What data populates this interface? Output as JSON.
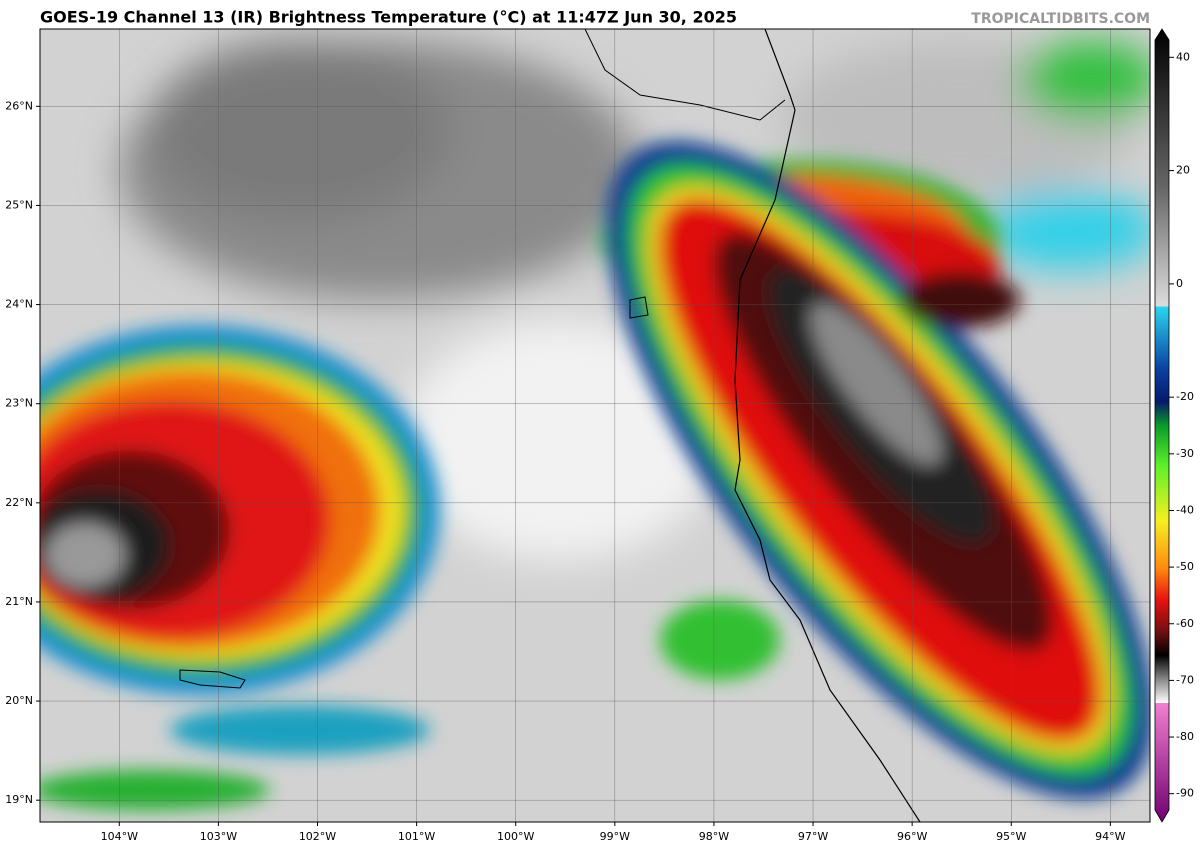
{
  "header": {
    "title": "GOES-19 Channel 13 (IR) Brightness Temperature (°C) at 11:47Z Jun 30, 2025",
    "credit": "TROPICALTIDBITS.COM"
  },
  "map": {
    "lon_range": [
      -104.8,
      -93.6
    ],
    "lat_range": [
      18.78,
      26.78
    ],
    "lat_ticks": [
      {
        "value": 26,
        "label": "26°N"
      },
      {
        "value": 25,
        "label": "25°N"
      },
      {
        "value": 24,
        "label": "24°N"
      },
      {
        "value": 23,
        "label": "23°N"
      },
      {
        "value": 22,
        "label": "22°N"
      },
      {
        "value": 21,
        "label": "21°N"
      },
      {
        "value": 20,
        "label": "20°N"
      },
      {
        "value": 19,
        "label": "19°N"
      }
    ],
    "lon_ticks": [
      {
        "value": -104,
        "label": "104°W"
      },
      {
        "value": -103,
        "label": "103°W"
      },
      {
        "value": -102,
        "label": "102°W"
      },
      {
        "value": -101,
        "label": "101°W"
      },
      {
        "value": -100,
        "label": "100°W"
      },
      {
        "value": -99,
        "label": "99°W"
      },
      {
        "value": -98,
        "label": "98°W"
      },
      {
        "value": -97,
        "label": "97°W"
      },
      {
        "value": -96,
        "label": "96°W"
      },
      {
        "value": -95,
        "label": "95°W"
      },
      {
        "value": -94,
        "label": "94°W"
      }
    ]
  },
  "colorbar": {
    "range": [
      -95,
      45
    ],
    "ticks": [
      40,
      20,
      0,
      -20,
      -30,
      -40,
      -50,
      -60,
      -70,
      -80,
      -90
    ]
  }
}
